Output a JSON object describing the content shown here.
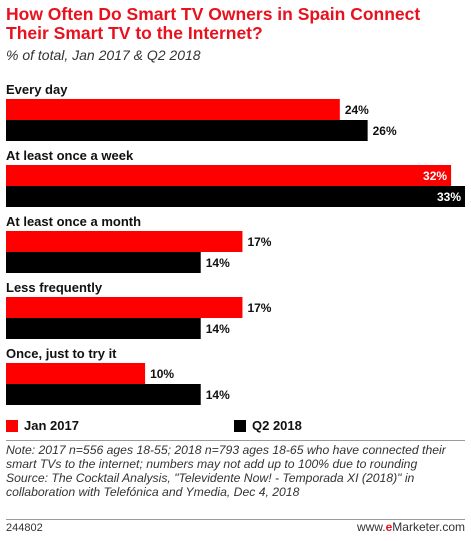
{
  "title": "How Often Do Smart TV Owners in Spain Connect Their Smart TV to the Internet?",
  "subtitle": "% of total, Jan 2017 & Q2 2018",
  "chart_data": {
    "type": "bar",
    "orientation": "horizontal",
    "categories": [
      "Every day",
      "At least once a week",
      "At least once a month",
      "Less frequently",
      "Once, just to try it"
    ],
    "series": [
      {
        "name": "Jan 2017",
        "color": "#ff0000",
        "values": [
          24,
          32,
          17,
          17,
          10
        ],
        "labels": [
          "24%",
          "32%",
          "17%",
          "17%",
          "10%"
        ]
      },
      {
        "name": "Q2 2018",
        "color": "#000000",
        "values": [
          26,
          33,
          14,
          14,
          14
        ],
        "labels": [
          "26%",
          "33%",
          "14%",
          "14%",
          "14%"
        ]
      }
    ],
    "xlim": [
      0,
      33
    ],
    "legend_position": "bottom",
    "grid": false
  },
  "notes": {
    "note": "Note: 2017 n=556 ages 18-55; 2018 n=793 ages 18-65 who have connected their smart TVs to the internet; numbers may not add up to 100% due to rounding",
    "source": "Source: The Cocktail Analysis, \"Televidente Now! - Temporada XI (2018)\" in collaboration with Telefónica and Ymedia, Dec 4, 2018"
  },
  "footer": {
    "id": "244802",
    "site": "www.",
    "brand_e": "e",
    "brand_rest": "Marketer",
    "suffix": ".com"
  }
}
